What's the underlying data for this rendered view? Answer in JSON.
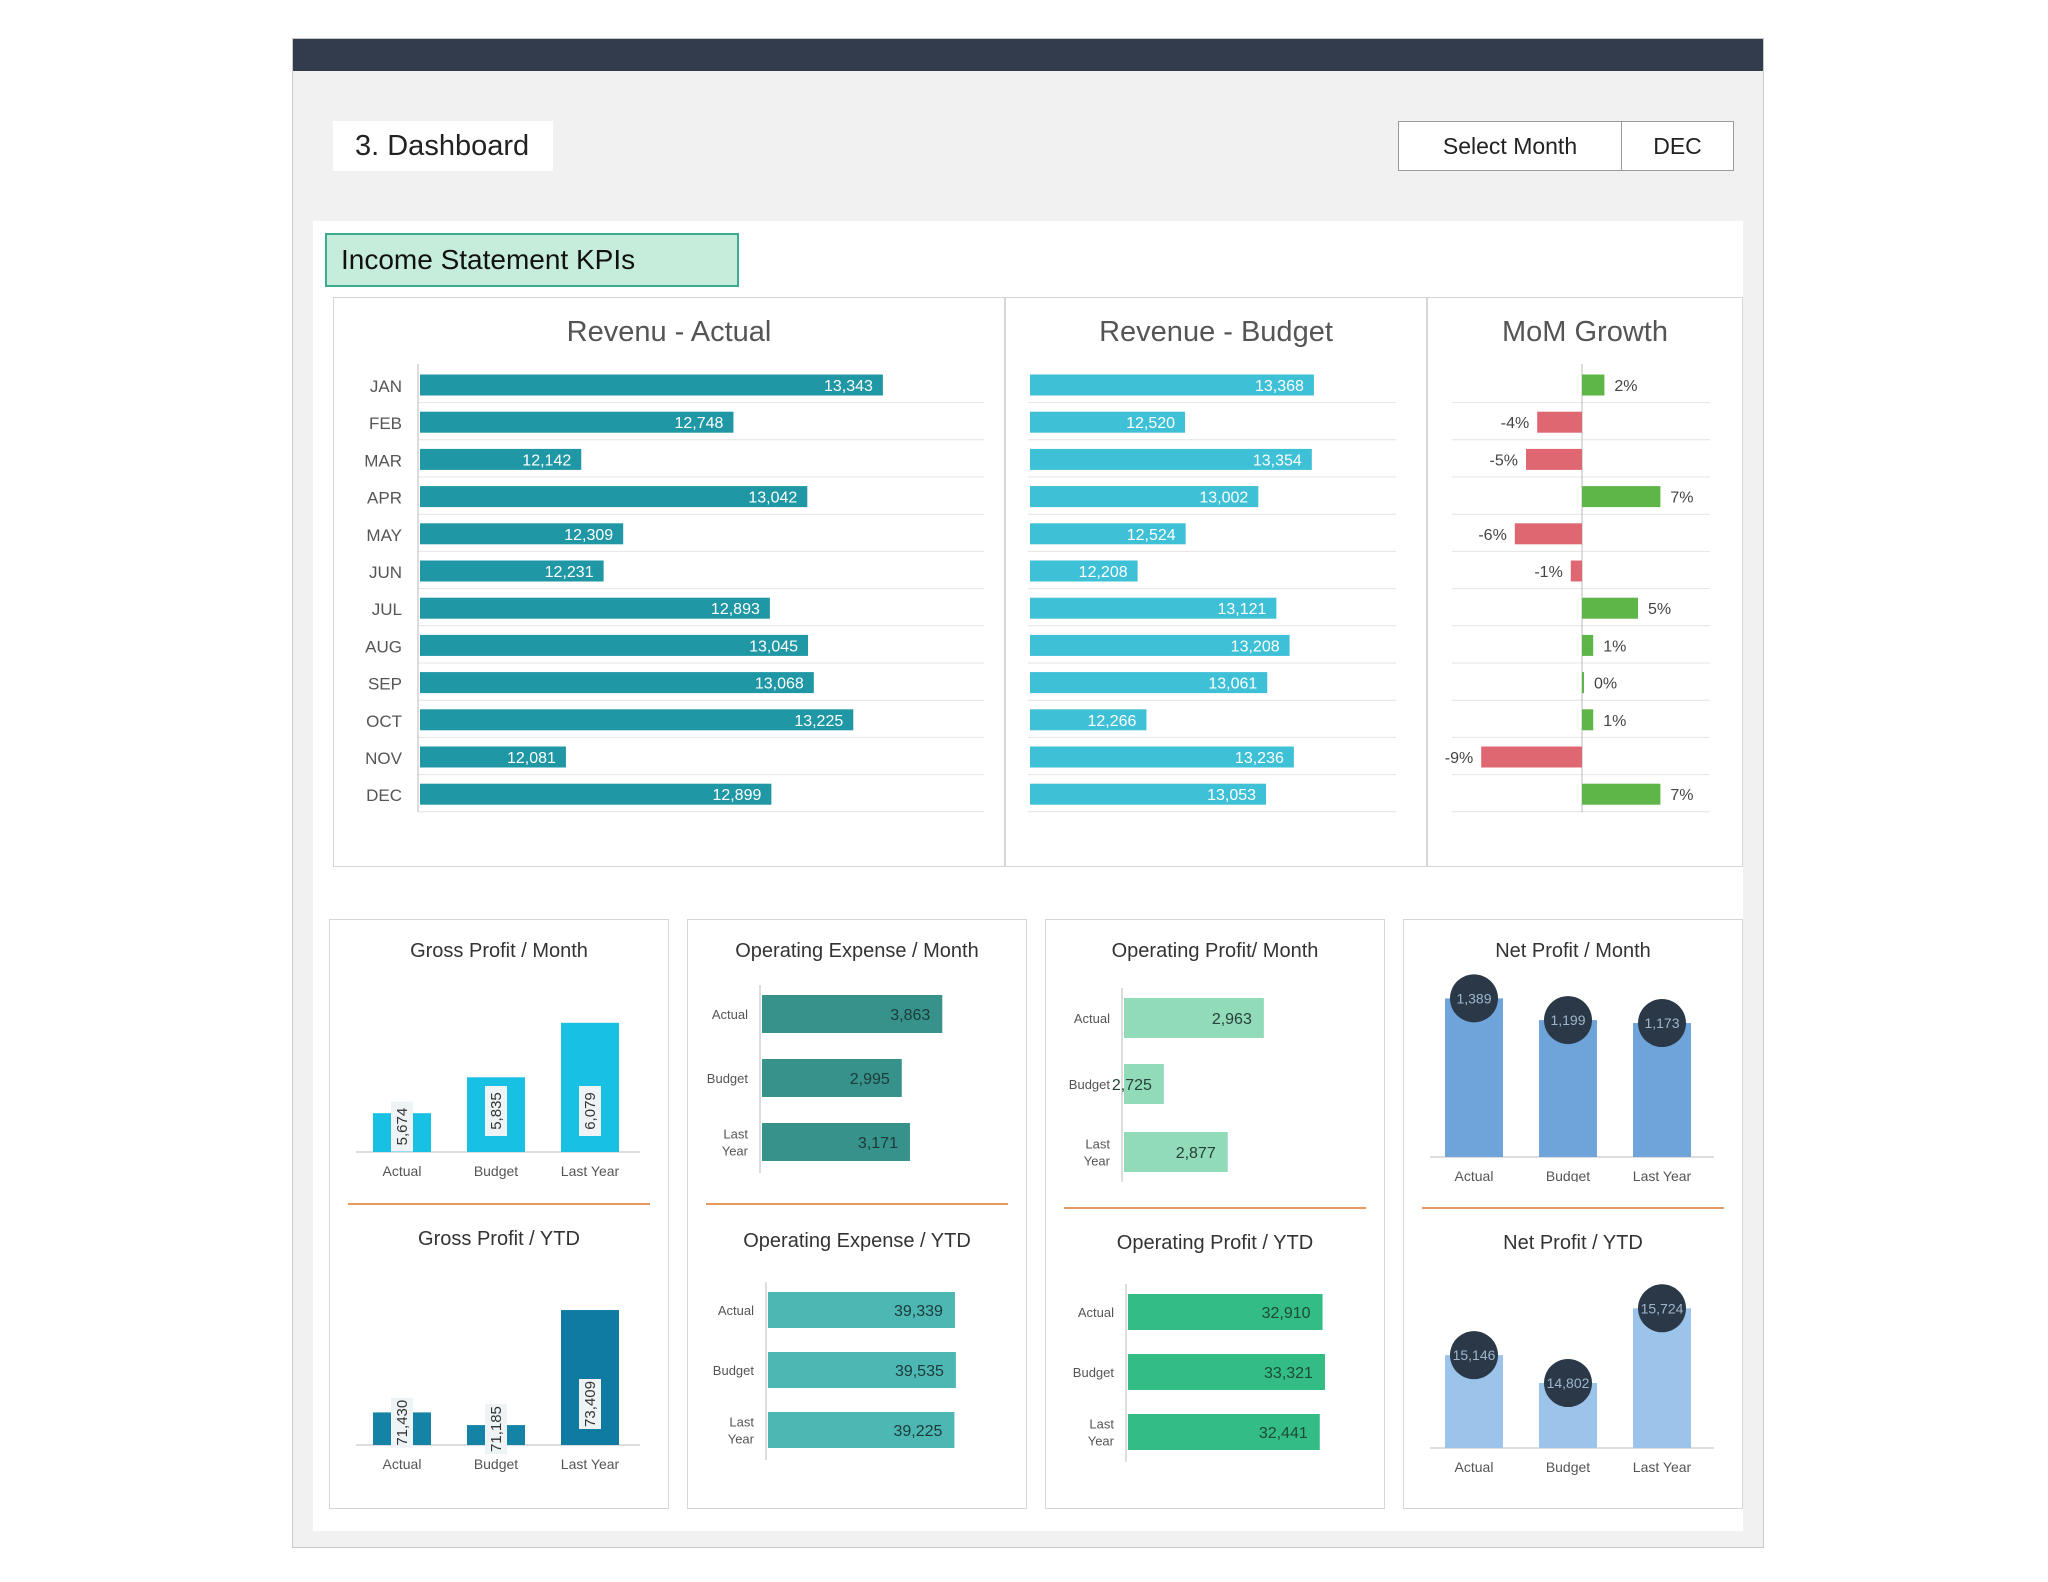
{
  "header": {
    "title": "3. Dashboard",
    "select_label": "Select Month",
    "select_value": "DEC",
    "section_title": "Income Statement KPIs"
  },
  "colors": {
    "actual": "#1f97a4",
    "budget": "#3ec0d6",
    "growth_pos": "#5eb548",
    "growth_neg": "#df6772",
    "gp_bar": "#18c1e4",
    "opex_month": "#36928b",
    "opex_ytd": "#4cb7b3",
    "op_month": "#92dbb8",
    "op_ytd": "#33bc83",
    "np_month": "#6fa4db",
    "np_ytd": "#9cc3e9",
    "bubble": "#2a3848"
  },
  "chart_data": [
    {
      "id": "revenue_actual",
      "type": "bar",
      "orientation": "horizontal",
      "title": "Revenu - Actual",
      "categories": [
        "JAN",
        "FEB",
        "MAR",
        "APR",
        "MAY",
        "JUN",
        "JUL",
        "AUG",
        "SEP",
        "OCT",
        "NOV",
        "DEC"
      ],
      "values": [
        13343,
        12748,
        12142,
        13042,
        12309,
        12231,
        12893,
        13045,
        13068,
        13225,
        12081,
        12899
      ],
      "labels": [
        "13,343",
        "12,748",
        "12,142",
        "13,042",
        "12,309",
        "12,231",
        "12,893",
        "13,045",
        "13,068",
        "13,225",
        "12,081",
        "12,899"
      ],
      "xlim": [
        11500,
        13650
      ]
    },
    {
      "id": "revenue_budget",
      "type": "bar",
      "orientation": "horizontal",
      "title": "Revenue - Budget",
      "values": [
        13368,
        12520,
        13354,
        13002,
        12524,
        12208,
        13121,
        13208,
        13061,
        12266,
        13236,
        13053
      ],
      "labels": [
        "13,368",
        "12,520",
        "13,354",
        "13,002",
        "12,524",
        "12,208",
        "13,121",
        "13,208",
        "13,061",
        "12,266",
        "13,236",
        "13,053"
      ],
      "xlim": [
        11500,
        14000
      ]
    },
    {
      "id": "mom_growth",
      "type": "bar",
      "orientation": "horizontal",
      "title": "MoM Growth",
      "values": [
        2,
        -4,
        -5,
        7,
        -6,
        -1,
        5,
        1,
        0,
        1,
        -9,
        7
      ],
      "labels": [
        "2%",
        "-4%",
        "-5%",
        "7%",
        "-6%",
        "-1%",
        "5%",
        "1%",
        "0%",
        "1%",
        "-9%",
        "7%"
      ],
      "xlim": [
        -10,
        10
      ]
    },
    {
      "id": "gross_profit_month",
      "type": "bar",
      "title": "Gross Profit / Month",
      "categories": [
        "Actual",
        "Budget",
        "Last Year"
      ],
      "values": [
        5674,
        5835,
        6079
      ],
      "labels": [
        "5,674",
        "5,835",
        "6,079"
      ],
      "ylim": [
        5500,
        6150
      ]
    },
    {
      "id": "gross_profit_ytd",
      "type": "bar",
      "title": "Gross Profit / YTD",
      "categories": [
        "Actual",
        "Budget",
        "Last Year"
      ],
      "values": [
        71430,
        71185,
        73409
      ],
      "labels": [
        "71,430",
        "71,185",
        "73,409"
      ],
      "ylim": [
        70800,
        73700
      ]
    },
    {
      "id": "opex_month",
      "type": "bar",
      "orientation": "horizontal",
      "title": "Operating Expense / Month",
      "categories": [
        "Actual",
        "Budget",
        "Last|Year"
      ],
      "values": [
        3863,
        2995,
        3171
      ],
      "labels": [
        "3,863",
        "2,995",
        "3,171"
      ],
      "xlim": [
        0,
        5400
      ]
    },
    {
      "id": "opex_ytd",
      "type": "bar",
      "orientation": "horizontal",
      "title": "Operating Expense / YTD",
      "categories": [
        "Actual",
        "Budget",
        "Last|Year"
      ],
      "values": [
        39339,
        39535,
        39225
      ],
      "labels": [
        "39,339",
        "39,535",
        "39,225"
      ],
      "xlim": [
        0,
        54500
      ]
    },
    {
      "id": "op_month",
      "type": "bar",
      "orientation": "horizontal",
      "title": "Operating Profit/ Month",
      "categories": [
        "Actual",
        "Budget",
        "Last|Year"
      ],
      "values": [
        2963,
        2725,
        2877
      ],
      "labels": [
        "2,963",
        "2,725",
        "2,877"
      ],
      "xlim": [
        2630,
        3130
      ]
    },
    {
      "id": "op_ytd",
      "type": "bar",
      "orientation": "horizontal",
      "title": "Operating Profit / YTD",
      "categories": [
        "Actual",
        "Budget",
        "Last|Year"
      ],
      "values": [
        32910,
        33321,
        32441
      ],
      "labels": [
        "32,910",
        "33,321",
        "32,441"
      ],
      "xlim": [
        0,
        45000
      ]
    },
    {
      "id": "np_month",
      "type": "bar",
      "title": "Net Profit / Month",
      "categories": [
        "Actual",
        "Budget",
        "Last Year"
      ],
      "values": [
        1389,
        1199,
        1173
      ],
      "labels": [
        "1,389",
        "1,199",
        "1,173"
      ],
      "ylim": [
        0,
        1620
      ]
    },
    {
      "id": "np_ytd",
      "type": "bar",
      "title": "Net Profit / YTD",
      "categories": [
        "Actual",
        "Budget",
        "Last Year"
      ],
      "values": [
        15146,
        14802,
        15724
      ],
      "labels": [
        "15,146",
        "14,802",
        "15,724"
      ],
      "ylim": [
        14000,
        15950
      ]
    }
  ]
}
